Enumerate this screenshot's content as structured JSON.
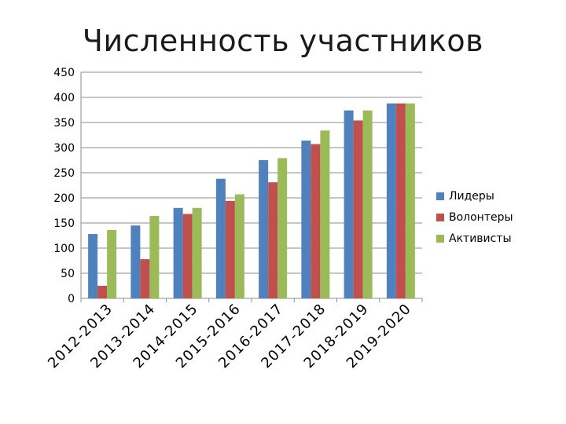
{
  "title": "Численность участников",
  "chart_data": {
    "type": "bar",
    "title": "Численность участников",
    "xlabel": "",
    "ylabel": "",
    "ylim": [
      0,
      450
    ],
    "yticks": [
      0,
      50,
      100,
      150,
      200,
      250,
      300,
      350,
      400,
      450
    ],
    "grid": true,
    "legend_position": "right",
    "categories": [
      "2012-2013",
      "2013-2014",
      "2014-2015",
      "2015-2016",
      "2016-2017",
      "2017-2018",
      "2018-2019",
      "2019-2020"
    ],
    "series": [
      {
        "name": "Лидеры",
        "color": "#4F81BD",
        "values": [
          128,
          145,
          180,
          238,
          275,
          314,
          374,
          388
        ]
      },
      {
        "name": "Волонтеры",
        "color": "#C0504D",
        "values": [
          25,
          78,
          168,
          194,
          231,
          307,
          354,
          388
        ]
      },
      {
        "name": "Активисты",
        "color": "#9BBB59",
        "values": [
          136,
          164,
          180,
          207,
          279,
          334,
          374,
          388
        ]
      }
    ]
  }
}
